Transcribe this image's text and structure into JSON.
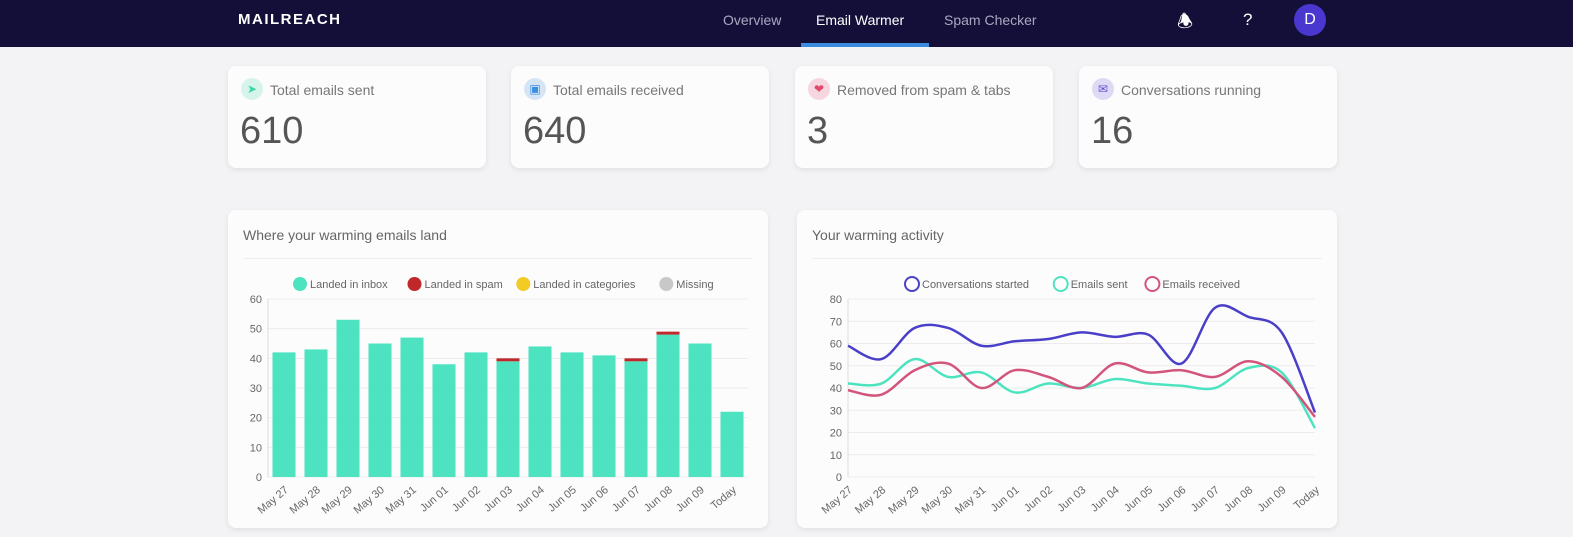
{
  "nav": {
    "logo": "MAILREACH",
    "links": [
      "Overview",
      "Email Warmer",
      "Spam Checker"
    ],
    "active": "Email Warmer",
    "avatar": "D"
  },
  "stats": [
    {
      "label": "Total emails sent",
      "value": "610",
      "icon": "paper-plane-icon",
      "color": "#3fd6a8"
    },
    {
      "label": "Total emails received",
      "value": "640",
      "icon": "inbox-icon",
      "color": "#3b8ee0"
    },
    {
      "label": "Removed from spam & tabs",
      "value": "3",
      "icon": "rescue-icon",
      "color": "#e0486e"
    },
    {
      "label": "Conversations running",
      "value": "16",
      "icon": "chat-icon",
      "color": "#6a4fd8"
    }
  ],
  "chart_data": [
    {
      "type": "bar",
      "title": "Where your warming emails land",
      "stacked": true,
      "legend": "top",
      "grid": true,
      "categories": [
        "May 27",
        "May 28",
        "May 29",
        "May 30",
        "May 31",
        "Jun 01",
        "Jun 02",
        "Jun 03",
        "Jun 04",
        "Jun 05",
        "Jun 06",
        "Jun 07",
        "Jun 08",
        "Jun 09",
        "Today"
      ],
      "ylim": [
        0,
        60
      ],
      "yticks": [
        0,
        10,
        20,
        30,
        40,
        50,
        60
      ],
      "series": [
        {
          "name": "Landed in inbox",
          "color": "#4de3c0",
          "values": [
            42,
            43,
            53,
            45,
            47,
            38,
            42,
            39,
            44,
            42,
            41,
            39,
            48,
            45,
            22
          ]
        },
        {
          "name": "Landed in spam",
          "color": "#c0282b",
          "values": [
            0,
            0,
            0,
            0,
            0,
            0,
            0,
            1,
            0,
            0,
            0,
            1,
            1,
            0,
            0
          ]
        },
        {
          "name": "Landed in categories",
          "color": "#f2cc25",
          "values": [
            0,
            0,
            0,
            0,
            0,
            0,
            0,
            0,
            0,
            0,
            0,
            0,
            0,
            0,
            0
          ]
        },
        {
          "name": "Missing",
          "color": "#c8c8c8",
          "values": [
            0,
            0,
            0,
            0,
            0,
            0,
            0,
            0,
            0,
            0,
            0,
            0,
            0,
            0,
            0
          ]
        }
      ]
    },
    {
      "type": "line",
      "title": "Your warming activity",
      "legend": "top",
      "grid": true,
      "categories": [
        "May 27",
        "May 28",
        "May 29",
        "May 30",
        "May 31",
        "Jun 01",
        "Jun 02",
        "Jun 03",
        "Jun 04",
        "Jun 05",
        "Jun 06",
        "Jun 07",
        "Jun 08",
        "Jun 09",
        "Today"
      ],
      "ylim": [
        0,
        80
      ],
      "yticks": [
        0,
        10,
        20,
        30,
        40,
        50,
        60,
        70,
        80
      ],
      "series": [
        {
          "name": "Conversations started",
          "color": "#4a3fc8",
          "values": [
            59,
            53,
            67,
            67,
            59,
            61,
            62,
            65,
            63,
            64,
            51,
            76,
            72,
            65,
            29
          ]
        },
        {
          "name": "Emails sent",
          "color": "#4de3c0",
          "values": [
            42,
            42,
            53,
            45,
            47,
            38,
            42,
            40,
            44,
            42,
            41,
            40,
            49,
            47,
            22
          ]
        },
        {
          "name": "Emails received",
          "color": "#d2557c",
          "values": [
            39,
            37,
            48,
            51,
            40,
            48,
            45,
            40,
            51,
            47,
            48,
            45,
            52,
            45,
            27
          ]
        }
      ]
    }
  ]
}
